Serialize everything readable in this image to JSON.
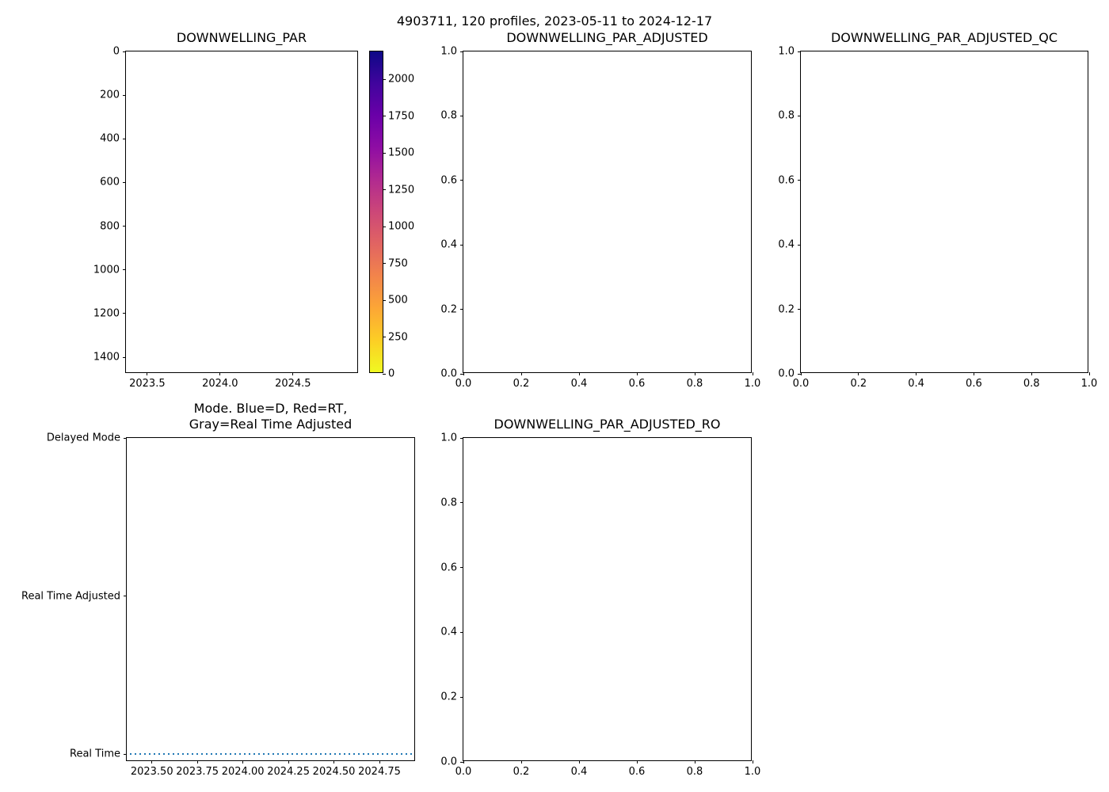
{
  "figure": {
    "suptitle": "4903711, 120 profiles, 2023-05-11 to 2024-12-17",
    "background": "#ffffff",
    "axis_color": "#000000"
  },
  "chart_data": [
    {
      "type": "scatter",
      "title": "DOWNWELLING_PAR",
      "xlabel": "",
      "ylabel": "",
      "grid": false,
      "points": [],
      "xlim": [
        2023.354,
        2024.952
      ],
      "ylim": [
        0,
        1476
      ],
      "y_axis_inverted_depth": true,
      "xticks": [
        {
          "v": 2023.5,
          "label": "2023.5"
        },
        {
          "v": 2024.0,
          "label": "2024.0"
        },
        {
          "v": 2024.5,
          "label": "2024.5"
        }
      ],
      "yticks": [
        {
          "v": 0,
          "label": "0"
        },
        {
          "v": 200,
          "label": "200"
        },
        {
          "v": 400,
          "label": "400"
        },
        {
          "v": 600,
          "label": "600"
        },
        {
          "v": 800,
          "label": "800"
        },
        {
          "v": 1000,
          "label": "1000"
        },
        {
          "v": 1200,
          "label": "1200"
        },
        {
          "v": 1400,
          "label": "1400"
        }
      ],
      "colorbar": {
        "colormap": "plasma_r",
        "vmin": 0,
        "vmax": 2190,
        "ticks": [
          {
            "v": 0,
            "label": "0"
          },
          {
            "v": 250,
            "label": "250"
          },
          {
            "v": 500,
            "label": "500"
          },
          {
            "v": 750,
            "label": "750"
          },
          {
            "v": 1000,
            "label": "1000"
          },
          {
            "v": 1250,
            "label": "1250"
          },
          {
            "v": 1500,
            "label": "1500"
          },
          {
            "v": 1750,
            "label": "1750"
          },
          {
            "v": 2000,
            "label": "2000"
          }
        ],
        "gradient_bottom_to_top": [
          "#f0f921",
          "#fcce25",
          "#fca636",
          "#f2844b",
          "#e16462",
          "#cc4778",
          "#b12a90",
          "#8f0da4",
          "#6a00a8",
          "#41049d",
          "#0d0887"
        ]
      }
    },
    {
      "type": "scatter",
      "title": "DOWNWELLING_PAR_ADJUSTED",
      "xlabel": "",
      "ylabel": "",
      "grid": false,
      "points": [],
      "xlim": [
        0.0,
        1.0
      ],
      "ylim": [
        1.0,
        0.0
      ],
      "xticks": [
        {
          "v": 0.0,
          "label": "0.0"
        },
        {
          "v": 0.2,
          "label": "0.2"
        },
        {
          "v": 0.4,
          "label": "0.4"
        },
        {
          "v": 0.6,
          "label": "0.6"
        },
        {
          "v": 0.8,
          "label": "0.8"
        },
        {
          "v": 1.0,
          "label": "1.0"
        }
      ],
      "yticks": [
        {
          "v": 1.0,
          "label": "1.0"
        },
        {
          "v": 0.8,
          "label": "0.8"
        },
        {
          "v": 0.6,
          "label": "0.6"
        },
        {
          "v": 0.4,
          "label": "0.4"
        },
        {
          "v": 0.2,
          "label": "0.2"
        },
        {
          "v": 0.0,
          "label": "0.0"
        }
      ]
    },
    {
      "type": "scatter",
      "title": "DOWNWELLING_PAR_ADJUSTED_QC",
      "xlabel": "",
      "ylabel": "",
      "grid": false,
      "points": [],
      "xlim": [
        0.0,
        1.0
      ],
      "ylim": [
        1.0,
        0.0
      ],
      "xticks": [
        {
          "v": 0.0,
          "label": "0.0"
        },
        {
          "v": 0.2,
          "label": "0.2"
        },
        {
          "v": 0.4,
          "label": "0.4"
        },
        {
          "v": 0.6,
          "label": "0.6"
        },
        {
          "v": 0.8,
          "label": "0.8"
        },
        {
          "v": 1.0,
          "label": "1.0"
        }
      ],
      "yticks": [
        {
          "v": 1.0,
          "label": "1.0"
        },
        {
          "v": 0.8,
          "label": "0.8"
        },
        {
          "v": 0.6,
          "label": "0.6"
        },
        {
          "v": 0.4,
          "label": "0.4"
        },
        {
          "v": 0.2,
          "label": "0.2"
        },
        {
          "v": 0.0,
          "label": "0.0"
        }
      ]
    },
    {
      "type": "line",
      "title": "Mode. Blue=D, Red=RT,\nGray=Real Time Adjusted",
      "xlabel": "",
      "ylabel": "",
      "grid": false,
      "legend_note": "Blue=D, Red=RT, Gray=Real Time Adjusted",
      "xlim": [
        2023.362,
        2024.95
      ],
      "ylim": [
        2.0,
        -0.05
      ],
      "xticks": [
        {
          "v": 2023.5,
          "label": "2023.50"
        },
        {
          "v": 2023.75,
          "label": "2023.75"
        },
        {
          "v": 2024.0,
          "label": "2024.00"
        },
        {
          "v": 2024.25,
          "label": "2024.25"
        },
        {
          "v": 2024.5,
          "label": "2024.50"
        },
        {
          "v": 2024.75,
          "label": "2024.75"
        }
      ],
      "yticks": [
        {
          "v": 2,
          "label": "Delayed Mode"
        },
        {
          "v": 1,
          "label": "Real Time Adjusted"
        },
        {
          "v": 0,
          "label": "Real Time"
        }
      ],
      "series": [
        {
          "name": "Real Time mode",
          "style": "dotted",
          "color": "#1f77b4",
          "y": 0,
          "x_start": 2023.38,
          "x_end": 2024.93
        }
      ]
    },
    {
      "type": "scatter",
      "title": "DOWNWELLING_PAR_ADJUSTED_RO",
      "xlabel": "",
      "ylabel": "",
      "grid": false,
      "points": [],
      "xlim": [
        0.0,
        1.0
      ],
      "ylim": [
        1.0,
        0.0
      ],
      "xticks": [
        {
          "v": 0.0,
          "label": "0.0"
        },
        {
          "v": 0.2,
          "label": "0.2"
        },
        {
          "v": 0.4,
          "label": "0.4"
        },
        {
          "v": 0.6,
          "label": "0.6"
        },
        {
          "v": 0.8,
          "label": "0.8"
        },
        {
          "v": 1.0,
          "label": "1.0"
        }
      ],
      "yticks": [
        {
          "v": 1.0,
          "label": "1.0"
        },
        {
          "v": 0.8,
          "label": "0.8"
        },
        {
          "v": 0.6,
          "label": "0.6"
        },
        {
          "v": 0.4,
          "label": "0.4"
        },
        {
          "v": 0.2,
          "label": "0.2"
        },
        {
          "v": 0.0,
          "label": "0.0"
        }
      ]
    }
  ]
}
